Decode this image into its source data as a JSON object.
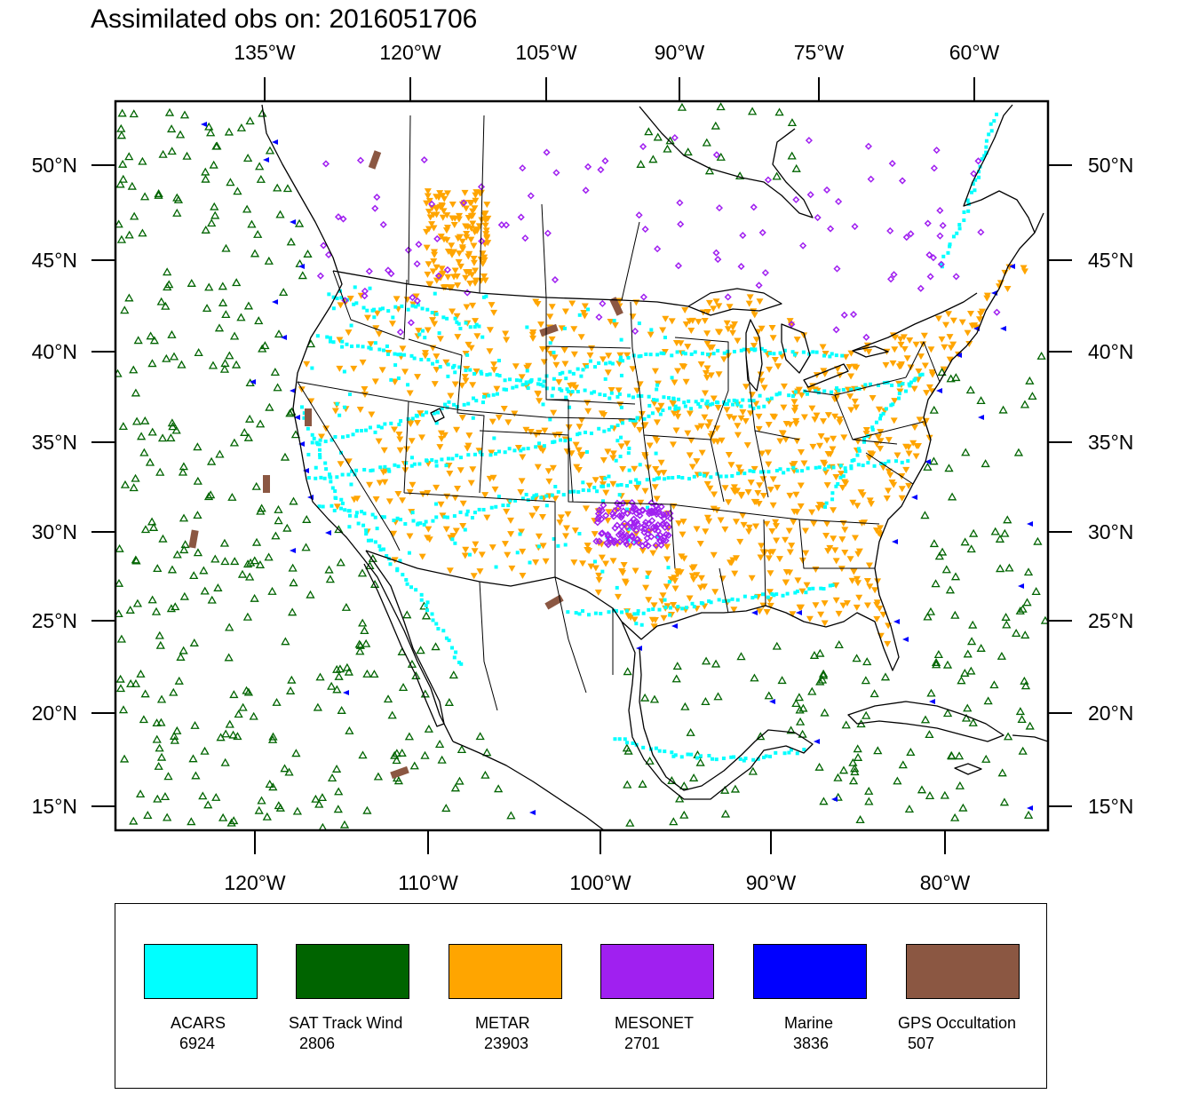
{
  "title": "Assimilated obs on: 2016051706",
  "top_lon_labels": [
    "135°W",
    "120°W",
    "105°W",
    "90°W",
    "75°W",
    "60°W"
  ],
  "bottom_lon_labels": [
    "120°W",
    "110°W",
    "100°W",
    "90°W",
    "80°W"
  ],
  "left_lat_labels": [
    "50°N",
    "45°N",
    "40°N",
    "35°N",
    "30°N",
    "25°N",
    "20°N",
    "15°N"
  ],
  "right_lat_labels": [
    "50°N",
    "45°N",
    "40°N",
    "35°N",
    "30°N",
    "25°N",
    "20°N",
    "15°N"
  ],
  "colors": {
    "acars": "#00ffff",
    "sat_track_wind": "#006400",
    "metar": "#ffa500",
    "mesonet": "#a020f0",
    "marine": "#0000ff",
    "gps_occultation": "#8b5742"
  },
  "legend": [
    {
      "label": "ACARS",
      "count": "6924",
      "color": "#00ffff",
      "icon": "square-dot-icon"
    },
    {
      "label": "SAT Track Wind",
      "count": "2806",
      "color": "#006400",
      "icon": "triangle-up-icon"
    },
    {
      "label": "METAR",
      "count": "23903",
      "color": "#ffa500",
      "icon": "triangle-down-icon"
    },
    {
      "label": "MESONET",
      "count": "2701",
      "color": "#a020f0",
      "icon": "diamond-icon"
    },
    {
      "label": "Marine",
      "count": "3836",
      "color": "#0000ff",
      "icon": "triangle-left-icon"
    },
    {
      "label": "GPS Occultation",
      "count": "507",
      "color": "#8b5742",
      "icon": "bar-icon"
    }
  ]
}
